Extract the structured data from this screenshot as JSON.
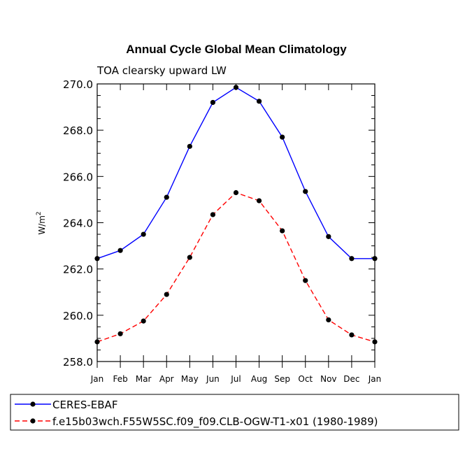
{
  "chart_data": {
    "type": "line",
    "title": "Annual Cycle Global Mean Climatology",
    "subtitle": "TOA clearsky upward LW",
    "ylabel_base": "W/m",
    "ylabel_sup": "2",
    "xlabel": "",
    "categories": [
      "Jan",
      "Feb",
      "Mar",
      "Apr",
      "May",
      "Jun",
      "Jul",
      "Aug",
      "Sep",
      "Oct",
      "Nov",
      "Dec",
      "Jan"
    ],
    "ylim": [
      258.0,
      270.0
    ],
    "yticks": [
      258.0,
      260.0,
      262.0,
      264.0,
      266.0,
      268.0,
      270.0
    ],
    "ytick_labels": [
      "258.0",
      "260.0",
      "262.0",
      "264.0",
      "266.0",
      "268.0",
      "270.0"
    ],
    "series": [
      {
        "name": "CERES-EBAF",
        "color": "#0000ff",
        "dash": "solid",
        "values": [
          262.45,
          262.8,
          263.5,
          265.1,
          267.3,
          269.2,
          269.85,
          269.25,
          267.7,
          265.35,
          263.4,
          262.45,
          262.45
        ]
      },
      {
        "name": "f.e15b03wch.F55W5SC.f09_f09.CLB-OGW-T1-x01 (1980-1989)",
        "color": "#ff0000",
        "dash": "dashed",
        "values": [
          258.85,
          259.2,
          259.75,
          260.9,
          262.5,
          264.35,
          265.3,
          264.95,
          263.65,
          261.5,
          259.8,
          259.15,
          258.85
        ]
      }
    ],
    "legend_position": "bottom-left"
  }
}
